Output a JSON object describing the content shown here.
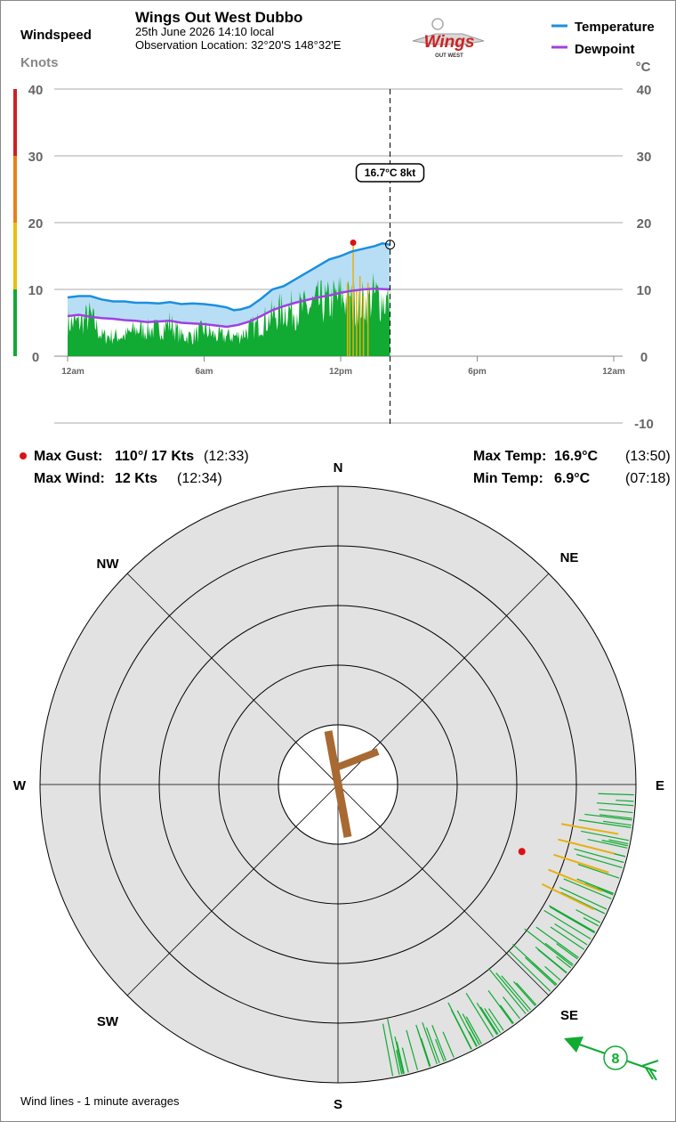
{
  "header": {
    "station": "Wings Out West Dubbo",
    "datetime": "25th June 2026  14:10 local",
    "location": "Observation Location: 32°20'S 148°32'E",
    "logo_text": "Wings",
    "logo_subtext": "OUT WEST"
  },
  "left_axis": {
    "title": "Windspeed",
    "unit": "Knots",
    "ticks": [
      0,
      10,
      20,
      30,
      40
    ]
  },
  "right_axis": {
    "unit": "°C",
    "ticks": [
      -10,
      0,
      10,
      20,
      30,
      40
    ]
  },
  "legend": {
    "temperature": "Temperature",
    "dewpoint": "Dewpoint"
  },
  "cursor_label": "16.7°C  8kt",
  "stats": {
    "max_gust_label": "Max Gust:",
    "max_gust_value": "110°/  17 Kts",
    "max_gust_time": "(12:33)",
    "max_wind_label": "Max Wind:",
    "max_wind_value": "12 Kts",
    "max_wind_time": "(12:34)",
    "max_temp_label": "Max Temp:",
    "max_temp_value": "16.9°C",
    "max_temp_time": "(13:50)",
    "min_temp_label": "Min Temp:",
    "min_temp_value": "6.9°C",
    "min_temp_time": "(07:18)"
  },
  "compass": {
    "N": "N",
    "NE": "NE",
    "E": "E",
    "SE": "SE",
    "S": "S",
    "SW": "SW",
    "W": "W",
    "NW": "NW"
  },
  "current_wind_badge": "8",
  "footer": "Wind lines - 1 minute averages",
  "colors": {
    "temperature": "#1a8fe0",
    "dewpoint": "#a040e0",
    "temp_fill": "#b8def5",
    "wind": "#11aa33",
    "gust": "#e8b010",
    "gust_marker": "#dd1111",
    "runway": "#a86a32",
    "compass_bg": "#e2e2e2",
    "scale": [
      "#11aa33",
      "#e8c010",
      "#e8801a",
      "#cc2222"
    ]
  },
  "chart_data": {
    "type": "line",
    "title": "Wings Out West Dubbo",
    "x_ticks": [
      "12am",
      "6am",
      "12pm",
      "6pm",
      "12am"
    ],
    "x_range_hours": [
      0,
      24
    ],
    "y_left": {
      "label": "Windspeed",
      "unit": "Knots",
      "range": [
        0,
        40
      ]
    },
    "y_right": {
      "unit": "°C",
      "range": [
        -10,
        40
      ]
    },
    "current_time_hours": 14.17,
    "series": [
      {
        "name": "Temperature",
        "unit": "°C",
        "axis": "right",
        "points": [
          [
            0,
            8.8
          ],
          [
            0.5,
            9.0
          ],
          [
            1,
            9.0
          ],
          [
            1.5,
            8.5
          ],
          [
            2,
            8.2
          ],
          [
            2.5,
            8.2
          ],
          [
            3,
            8.0
          ],
          [
            3.5,
            8.0
          ],
          [
            4,
            7.9
          ],
          [
            4.5,
            8.1
          ],
          [
            5,
            7.8
          ],
          [
            5.5,
            7.9
          ],
          [
            6,
            7.8
          ],
          [
            6.5,
            7.6
          ],
          [
            7,
            7.3
          ],
          [
            7.3,
            6.9
          ],
          [
            7.6,
            7.0
          ],
          [
            8,
            7.4
          ],
          [
            8.5,
            8.6
          ],
          [
            9,
            10.0
          ],
          [
            9.5,
            10.5
          ],
          [
            10,
            11.5
          ],
          [
            10.5,
            12.5
          ],
          [
            11,
            13.5
          ],
          [
            11.5,
            14.5
          ],
          [
            12,
            15.0
          ],
          [
            12.5,
            15.7
          ],
          [
            13,
            16.1
          ],
          [
            13.5,
            16.5
          ],
          [
            13.83,
            16.9
          ],
          [
            14.17,
            16.7
          ]
        ]
      },
      {
        "name": "Dewpoint",
        "unit": "°C",
        "axis": "right",
        "points": [
          [
            0,
            6.0
          ],
          [
            0.5,
            6.2
          ],
          [
            1,
            5.9
          ],
          [
            1.5,
            5.7
          ],
          [
            2,
            5.6
          ],
          [
            2.5,
            5.4
          ],
          [
            3,
            5.3
          ],
          [
            3.5,
            5.1
          ],
          [
            4,
            5.2
          ],
          [
            4.5,
            5.3
          ],
          [
            5,
            5.0
          ],
          [
            5.5,
            4.9
          ],
          [
            6,
            4.8
          ],
          [
            6.5,
            4.6
          ],
          [
            7,
            4.4
          ],
          [
            7.5,
            4.7
          ],
          [
            8,
            5.2
          ],
          [
            8.5,
            6.0
          ],
          [
            9,
            6.9
          ],
          [
            9.5,
            7.5
          ],
          [
            10,
            8.0
          ],
          [
            10.5,
            8.4
          ],
          [
            11,
            8.8
          ],
          [
            11.5,
            9.1
          ],
          [
            12,
            9.5
          ],
          [
            12.5,
            9.8
          ],
          [
            13,
            10.0
          ],
          [
            13.5,
            10.1
          ],
          [
            14.17,
            10.0
          ]
        ]
      },
      {
        "name": "Wind speed",
        "unit": "kt",
        "axis": "left",
        "points": [
          [
            0,
            5
          ],
          [
            0.5,
            5
          ],
          [
            1,
            6
          ],
          [
            1.5,
            3
          ],
          [
            2,
            3
          ],
          [
            2.5,
            3
          ],
          [
            3,
            4
          ],
          [
            3.5,
            4
          ],
          [
            4,
            4
          ],
          [
            4.5,
            5
          ],
          [
            5,
            3
          ],
          [
            5.5,
            3
          ],
          [
            6,
            4
          ],
          [
            6.5,
            3
          ],
          [
            7,
            3
          ],
          [
            7.5,
            3
          ],
          [
            8,
            4
          ],
          [
            8.5,
            5
          ],
          [
            9,
            6
          ],
          [
            9.5,
            7
          ],
          [
            10,
            7
          ],
          [
            10.5,
            7
          ],
          [
            11,
            8
          ],
          [
            11.5,
            8
          ],
          [
            12,
            9
          ],
          [
            12.5,
            8
          ],
          [
            13,
            8
          ],
          [
            13.5,
            9
          ],
          [
            14.17,
            8
          ]
        ]
      }
    ],
    "gusts_kt": [
      [
        12.3,
        11
      ],
      [
        12.4,
        9
      ],
      [
        12.55,
        17
      ],
      [
        12.7,
        10
      ],
      [
        12.85,
        12
      ],
      [
        13.0,
        9
      ],
      [
        13.2,
        11
      ]
    ],
    "max_gust_point": {
      "time_hours": 12.55,
      "kt": 17
    },
    "wind_directions_deg": [
      94,
      98,
      102,
      106,
      110,
      114,
      118,
      122,
      126,
      130,
      134,
      138,
      142,
      146,
      150,
      154,
      158,
      162,
      166,
      168
    ],
    "gust_direction_deg": 110,
    "current_wind": {
      "direction_deg": 115,
      "speed_kt": 8
    }
  }
}
